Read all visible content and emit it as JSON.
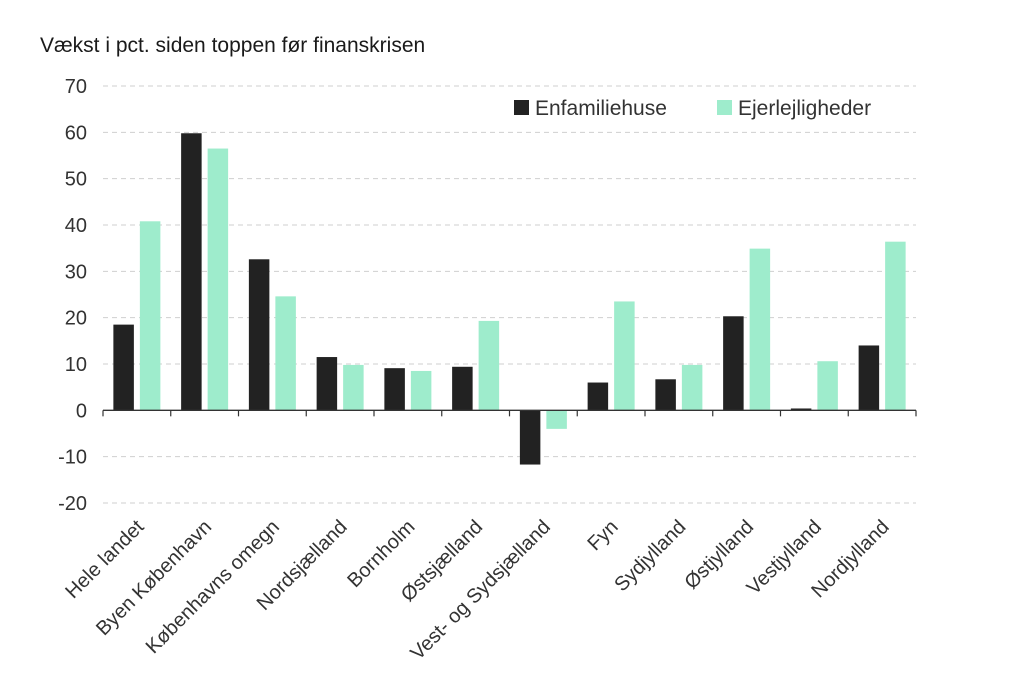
{
  "chart_data": {
    "type": "bar",
    "ylabel": "Vækst i pct. siden toppen før finanskrisen",
    "ylim": [
      -20,
      70
    ],
    "yticks": [
      -20,
      -10,
      0,
      10,
      20,
      30,
      40,
      50,
      60,
      70
    ],
    "grid": true,
    "legend_position": "top-right",
    "categories": [
      "Hele landet",
      "Byen København",
      "Københavns omegn",
      "Nordsjælland",
      "Bornholm",
      "Østsjælland",
      "Vest- og Sydsjælland",
      "Fyn",
      "Sydjylland",
      "Østjylland",
      "Vestjylland",
      "Nordjylland"
    ],
    "series": [
      {
        "name": "Enfamiliehuse",
        "color": "#222222",
        "values": [
          18.5,
          59.8,
          32.6,
          11.5,
          9.1,
          9.4,
          -11.7,
          6.0,
          6.7,
          20.3,
          0.4,
          14.0
        ]
      },
      {
        "name": "Ejerlejligheder",
        "color": "#9eeccc",
        "values": [
          40.8,
          56.5,
          24.6,
          9.8,
          8.5,
          19.3,
          -4.0,
          23.5,
          9.8,
          34.9,
          10.6,
          36.4
        ]
      }
    ]
  }
}
